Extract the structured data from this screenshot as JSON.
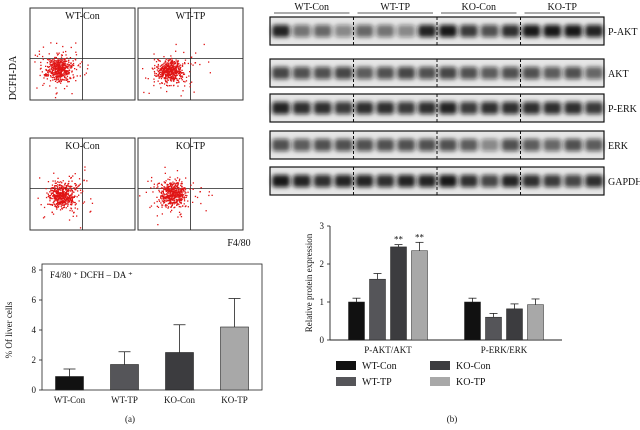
{
  "flow": {
    "ylabel": "DCFH-DA",
    "xlabel": "F4/80",
    "panels": [
      {
        "label": "WT-Con"
      },
      {
        "label": "WT-TP"
      },
      {
        "label": "KO-Con"
      },
      {
        "label": "KO-TP"
      }
    ],
    "color": "#e01414"
  },
  "western": {
    "groups": [
      "WT-Con",
      "WT-TP",
      "KO-Con",
      "KO-TP"
    ],
    "bands": [
      "P-AKT",
      "AKT",
      "P-ERK",
      "ERK",
      "GAPDH"
    ]
  },
  "chart_data": [
    {
      "type": "bar",
      "title": "F4/80 ⁺ DCFH – DA ⁺",
      "ylabel": "% Of liver cells",
      "xlabel": "",
      "categories": [
        "WT-Con",
        "WT-TP",
        "KO-Con",
        "KO-TP"
      ],
      "values": [
        0.9,
        1.7,
        2.5,
        4.2
      ],
      "errors": [
        0.5,
        0.85,
        1.85,
        1.9
      ],
      "colors": [
        "#111111",
        "#555559",
        "#3c3c3f",
        "#a8a8a8"
      ],
      "ylim": [
        0,
        8
      ],
      "yticks": [
        0,
        2,
        4,
        6,
        8
      ],
      "grid": false
    },
    {
      "type": "bar",
      "ylabel": "Relative protein expression",
      "xlabel": "",
      "categories": [
        "P-AKT/AKT",
        "P-ERK/ERK"
      ],
      "series": [
        {
          "name": "WT-Con",
          "values": [
            1.0,
            1.0
          ],
          "errors": [
            0.1,
            0.1
          ],
          "color": "#111111"
        },
        {
          "name": "WT-TP",
          "values": [
            1.6,
            0.6
          ],
          "errors": [
            0.15,
            0.1
          ],
          "color": "#555559"
        },
        {
          "name": "KO-Con",
          "values": [
            2.45,
            0.82
          ],
          "errors": [
            0.06,
            0.13
          ],
          "color": "#3c3c3f"
        },
        {
          "name": "KO-TP",
          "values": [
            2.35,
            0.93
          ],
          "errors": [
            0.22,
            0.15
          ],
          "color": "#a8a8a8"
        }
      ],
      "annotations": [
        {
          "category": "P-AKT/AKT",
          "series": "KO-Con",
          "text": "**"
        },
        {
          "category": "P-AKT/AKT",
          "series": "KO-TP",
          "text": "**"
        }
      ],
      "ylim": [
        0,
        3
      ],
      "yticks": [
        0,
        1,
        2,
        3
      ],
      "legend_placement": "bottom",
      "grid": false
    }
  ],
  "captions": {
    "left": "(a)",
    "right": "(b)"
  }
}
